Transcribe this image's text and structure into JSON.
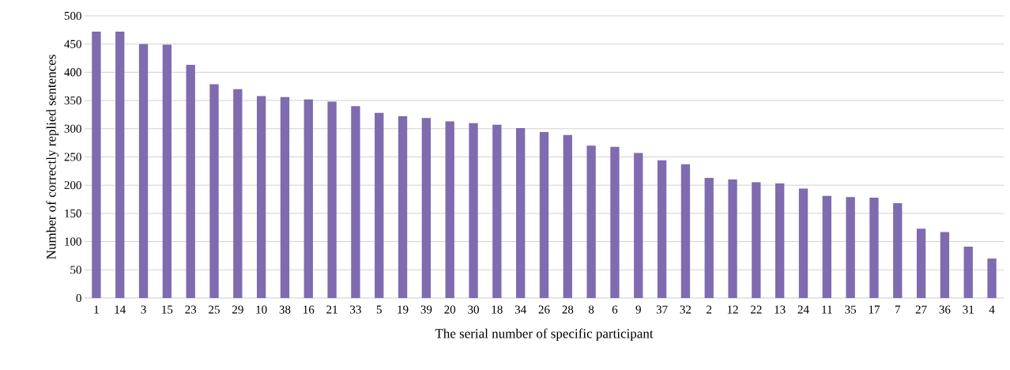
{
  "chart_data": {
    "type": "bar",
    "xlabel": "The serial number of specific participant",
    "ylabel": "Number of correctly replied sentences",
    "categories": [
      "1",
      "14",
      "3",
      "15",
      "23",
      "25",
      "29",
      "10",
      "38",
      "16",
      "21",
      "33",
      "5",
      "19",
      "39",
      "20",
      "30",
      "18",
      "34",
      "26",
      "28",
      "8",
      "6",
      "9",
      "37",
      "32",
      "2",
      "12",
      "22",
      "13",
      "24",
      "11",
      "35",
      "17",
      "7",
      "27",
      "36",
      "31",
      "4"
    ],
    "values": [
      472,
      472,
      450,
      449,
      413,
      379,
      370,
      358,
      356,
      352,
      348,
      340,
      328,
      322,
      319,
      313,
      310,
      307,
      301,
      294,
      289,
      270,
      268,
      257,
      244,
      237,
      213,
      210,
      205,
      203,
      194,
      181,
      179,
      178,
      168,
      123,
      117,
      91,
      70
    ],
    "color": "#7e6bb0",
    "ylim": [
      0,
      500
    ],
    "yticks": [
      0,
      50,
      100,
      150,
      200,
      250,
      300,
      350,
      400,
      450,
      500
    ],
    "grid": "y"
  }
}
